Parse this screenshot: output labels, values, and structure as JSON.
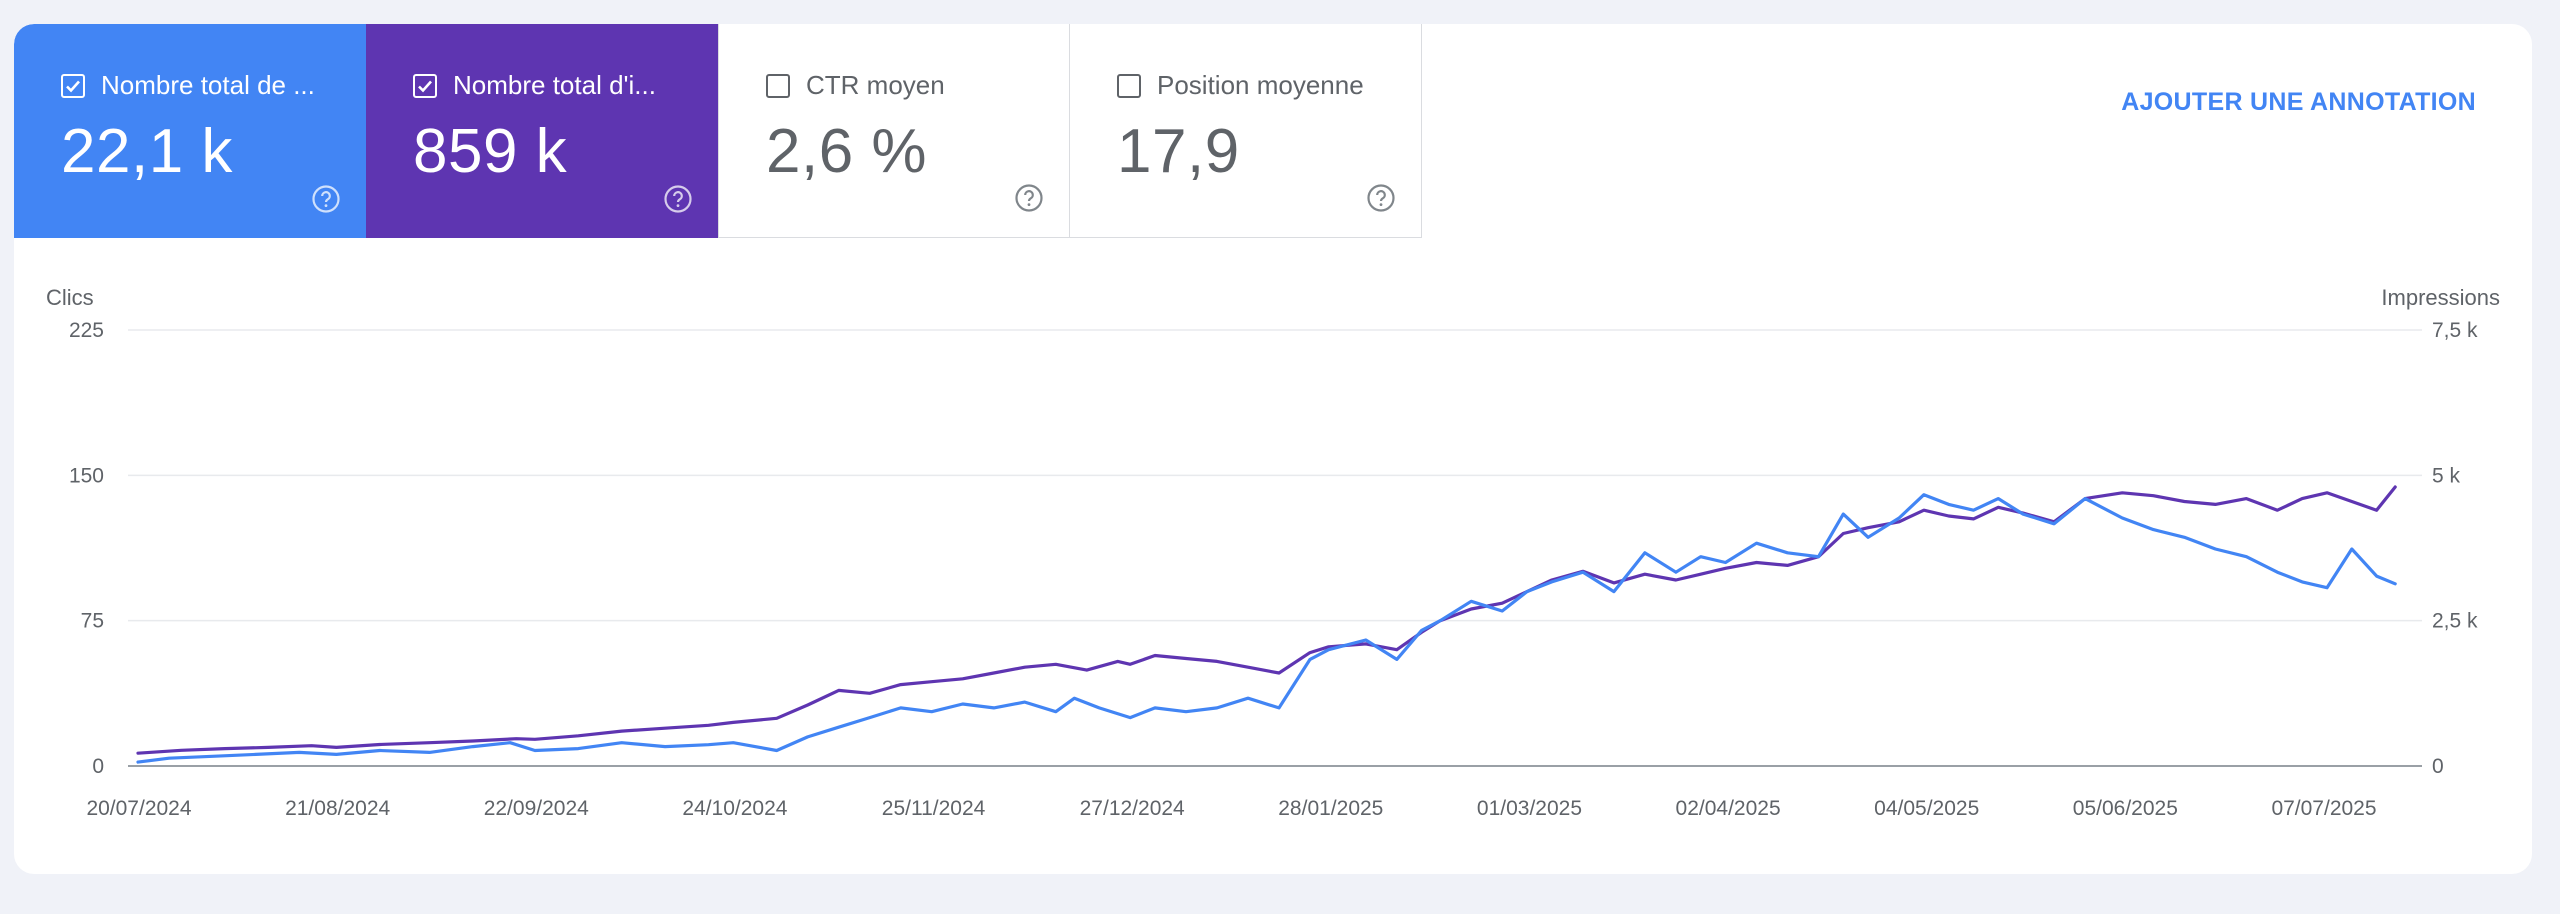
{
  "tiles": [
    {
      "key": "clicks",
      "label": "Nombre total de ...",
      "value": "22,1 k",
      "checked": true
    },
    {
      "key": "impr",
      "label": "Nombre total d'i...",
      "value": "859 k",
      "checked": true
    },
    {
      "key": "ctr",
      "label": "CTR moyen",
      "value": "2,6 %",
      "checked": false
    },
    {
      "key": "pos",
      "label": "Position moyenne",
      "value": "17,9",
      "checked": false
    }
  ],
  "annotation_label": "AJOUTER UNE ANNOTATION",
  "colors": {
    "clicks": "#4285f4",
    "impressions": "#5e35b1",
    "grid": "#e8eaed",
    "axis": "#9aa0a6"
  },
  "chart_data": {
    "type": "line",
    "y_left_label": "Clics",
    "y_right_label": "Impressions",
    "y_left_ticks": [
      "0",
      "75",
      "150",
      "225"
    ],
    "y_left_range": [
      0,
      225
    ],
    "y_right_ticks": [
      "0",
      "2,5 k",
      "5 k",
      "7,5 k"
    ],
    "y_right_range": [
      0,
      7500
    ],
    "x_tick_labels": [
      "20/07/2024",
      "21/08/2024",
      "22/09/2024",
      "24/10/2024",
      "25/11/2024",
      "27/12/2024",
      "28/01/2025",
      "01/03/2025",
      "02/04/2025",
      "04/05/2025",
      "05/06/2025",
      "07/07/2025"
    ],
    "x_range": [
      "2024-07-20",
      "2025-07-23"
    ],
    "series": [
      {
        "name": "Clics",
        "axis": "left",
        "points": [
          [
            "2024-07-20",
            2
          ],
          [
            "2024-07-25",
            4
          ],
          [
            "2024-08-01",
            5
          ],
          [
            "2024-08-08",
            6
          ],
          [
            "2024-08-15",
            7
          ],
          [
            "2024-08-21",
            6
          ],
          [
            "2024-08-28",
            8
          ],
          [
            "2024-09-05",
            7
          ],
          [
            "2024-09-12",
            10
          ],
          [
            "2024-09-18",
            12
          ],
          [
            "2024-09-22",
            8
          ],
          [
            "2024-09-29",
            9
          ],
          [
            "2024-10-06",
            12
          ],
          [
            "2024-10-13",
            10
          ],
          [
            "2024-10-20",
            11
          ],
          [
            "2024-10-24",
            12
          ],
          [
            "2024-10-31",
            8
          ],
          [
            "2024-11-05",
            15
          ],
          [
            "2024-11-10",
            20
          ],
          [
            "2024-11-15",
            25
          ],
          [
            "2024-11-20",
            30
          ],
          [
            "2024-11-25",
            28
          ],
          [
            "2024-11-30",
            32
          ],
          [
            "2024-12-05",
            30
          ],
          [
            "2024-12-10",
            33
          ],
          [
            "2024-12-15",
            28
          ],
          [
            "2024-12-18",
            35
          ],
          [
            "2024-12-22",
            30
          ],
          [
            "2024-12-27",
            25
          ],
          [
            "2024-12-31",
            30
          ],
          [
            "2025-01-05",
            28
          ],
          [
            "2025-01-10",
            30
          ],
          [
            "2025-01-15",
            35
          ],
          [
            "2025-01-20",
            30
          ],
          [
            "2025-01-25",
            55
          ],
          [
            "2025-01-28",
            60
          ],
          [
            "2025-02-03",
            65
          ],
          [
            "2025-02-08",
            55
          ],
          [
            "2025-02-12",
            70
          ],
          [
            "2025-02-15",
            75
          ],
          [
            "2025-02-20",
            85
          ],
          [
            "2025-02-25",
            80
          ],
          [
            "2025-03-01",
            90
          ],
          [
            "2025-03-05",
            95
          ],
          [
            "2025-03-10",
            100
          ],
          [
            "2025-03-15",
            90
          ],
          [
            "2025-03-20",
            110
          ],
          [
            "2025-03-25",
            100
          ],
          [
            "2025-03-29",
            108
          ],
          [
            "2025-04-02",
            105
          ],
          [
            "2025-04-07",
            115
          ],
          [
            "2025-04-12",
            110
          ],
          [
            "2025-04-17",
            108
          ],
          [
            "2025-04-21",
            130
          ],
          [
            "2025-04-25",
            118
          ],
          [
            "2025-04-30",
            128
          ],
          [
            "2025-05-04",
            140
          ],
          [
            "2025-05-08",
            135
          ],
          [
            "2025-05-12",
            132
          ],
          [
            "2025-05-16",
            138
          ],
          [
            "2025-05-20",
            130
          ],
          [
            "2025-05-25",
            125
          ],
          [
            "2025-05-30",
            138
          ],
          [
            "2025-06-05",
            128
          ],
          [
            "2025-06-10",
            122
          ],
          [
            "2025-06-15",
            118
          ],
          [
            "2025-06-20",
            112
          ],
          [
            "2025-06-25",
            108
          ],
          [
            "2025-06-30",
            100
          ],
          [
            "2025-07-04",
            95
          ],
          [
            "2025-07-08",
            92
          ],
          [
            "2025-07-12",
            112
          ],
          [
            "2025-07-16",
            98
          ],
          [
            "2025-07-19",
            94
          ]
        ]
      },
      {
        "name": "Impressions",
        "axis": "right",
        "points": [
          [
            "2024-07-20",
            220
          ],
          [
            "2024-07-27",
            270
          ],
          [
            "2024-08-03",
            300
          ],
          [
            "2024-08-10",
            320
          ],
          [
            "2024-08-17",
            350
          ],
          [
            "2024-08-21",
            320
          ],
          [
            "2024-08-28",
            370
          ],
          [
            "2024-09-05",
            400
          ],
          [
            "2024-09-12",
            430
          ],
          [
            "2024-09-19",
            470
          ],
          [
            "2024-09-22",
            460
          ],
          [
            "2024-09-29",
            520
          ],
          [
            "2024-10-06",
            600
          ],
          [
            "2024-10-13",
            650
          ],
          [
            "2024-10-20",
            700
          ],
          [
            "2024-10-24",
            750
          ],
          [
            "2024-10-31",
            820
          ],
          [
            "2024-11-05",
            1050
          ],
          [
            "2024-11-10",
            1300
          ],
          [
            "2024-11-15",
            1250
          ],
          [
            "2024-11-20",
            1400
          ],
          [
            "2024-11-25",
            1450
          ],
          [
            "2024-11-30",
            1500
          ],
          [
            "2024-12-05",
            1600
          ],
          [
            "2024-12-10",
            1700
          ],
          [
            "2024-12-15",
            1750
          ],
          [
            "2024-12-20",
            1650
          ],
          [
            "2024-12-25",
            1800
          ],
          [
            "2024-12-27",
            1750
          ],
          [
            "2024-12-31",
            1900
          ],
          [
            "2025-01-05",
            1850
          ],
          [
            "2025-01-10",
            1800
          ],
          [
            "2025-01-15",
            1700
          ],
          [
            "2025-01-20",
            1600
          ],
          [
            "2025-01-25",
            1950
          ],
          [
            "2025-01-28",
            2050
          ],
          [
            "2025-02-03",
            2100
          ],
          [
            "2025-02-08",
            2000
          ],
          [
            "2025-02-12",
            2300
          ],
          [
            "2025-02-15",
            2500
          ],
          [
            "2025-02-20",
            2700
          ],
          [
            "2025-02-25",
            2800
          ],
          [
            "2025-03-01",
            3000
          ],
          [
            "2025-03-05",
            3200
          ],
          [
            "2025-03-10",
            3350
          ],
          [
            "2025-03-15",
            3150
          ],
          [
            "2025-03-20",
            3300
          ],
          [
            "2025-03-25",
            3200
          ],
          [
            "2025-03-29",
            3300
          ],
          [
            "2025-04-02",
            3400
          ],
          [
            "2025-04-07",
            3500
          ],
          [
            "2025-04-12",
            3450
          ],
          [
            "2025-04-17",
            3600
          ],
          [
            "2025-04-21",
            4000
          ],
          [
            "2025-04-25",
            4100
          ],
          [
            "2025-04-30",
            4200
          ],
          [
            "2025-05-04",
            4400
          ],
          [
            "2025-05-08",
            4300
          ],
          [
            "2025-05-12",
            4250
          ],
          [
            "2025-05-16",
            4450
          ],
          [
            "2025-05-20",
            4350
          ],
          [
            "2025-05-25",
            4200
          ],
          [
            "2025-05-30",
            4600
          ],
          [
            "2025-06-05",
            4700
          ],
          [
            "2025-06-10",
            4650
          ],
          [
            "2025-06-15",
            4550
          ],
          [
            "2025-06-20",
            4500
          ],
          [
            "2025-06-25",
            4600
          ],
          [
            "2025-06-30",
            4400
          ],
          [
            "2025-07-04",
            4600
          ],
          [
            "2025-07-08",
            4700
          ],
          [
            "2025-07-12",
            4550
          ],
          [
            "2025-07-16",
            4400
          ],
          [
            "2025-07-19",
            4800
          ]
        ]
      }
    ],
    "legend": "none",
    "grid": true
  }
}
